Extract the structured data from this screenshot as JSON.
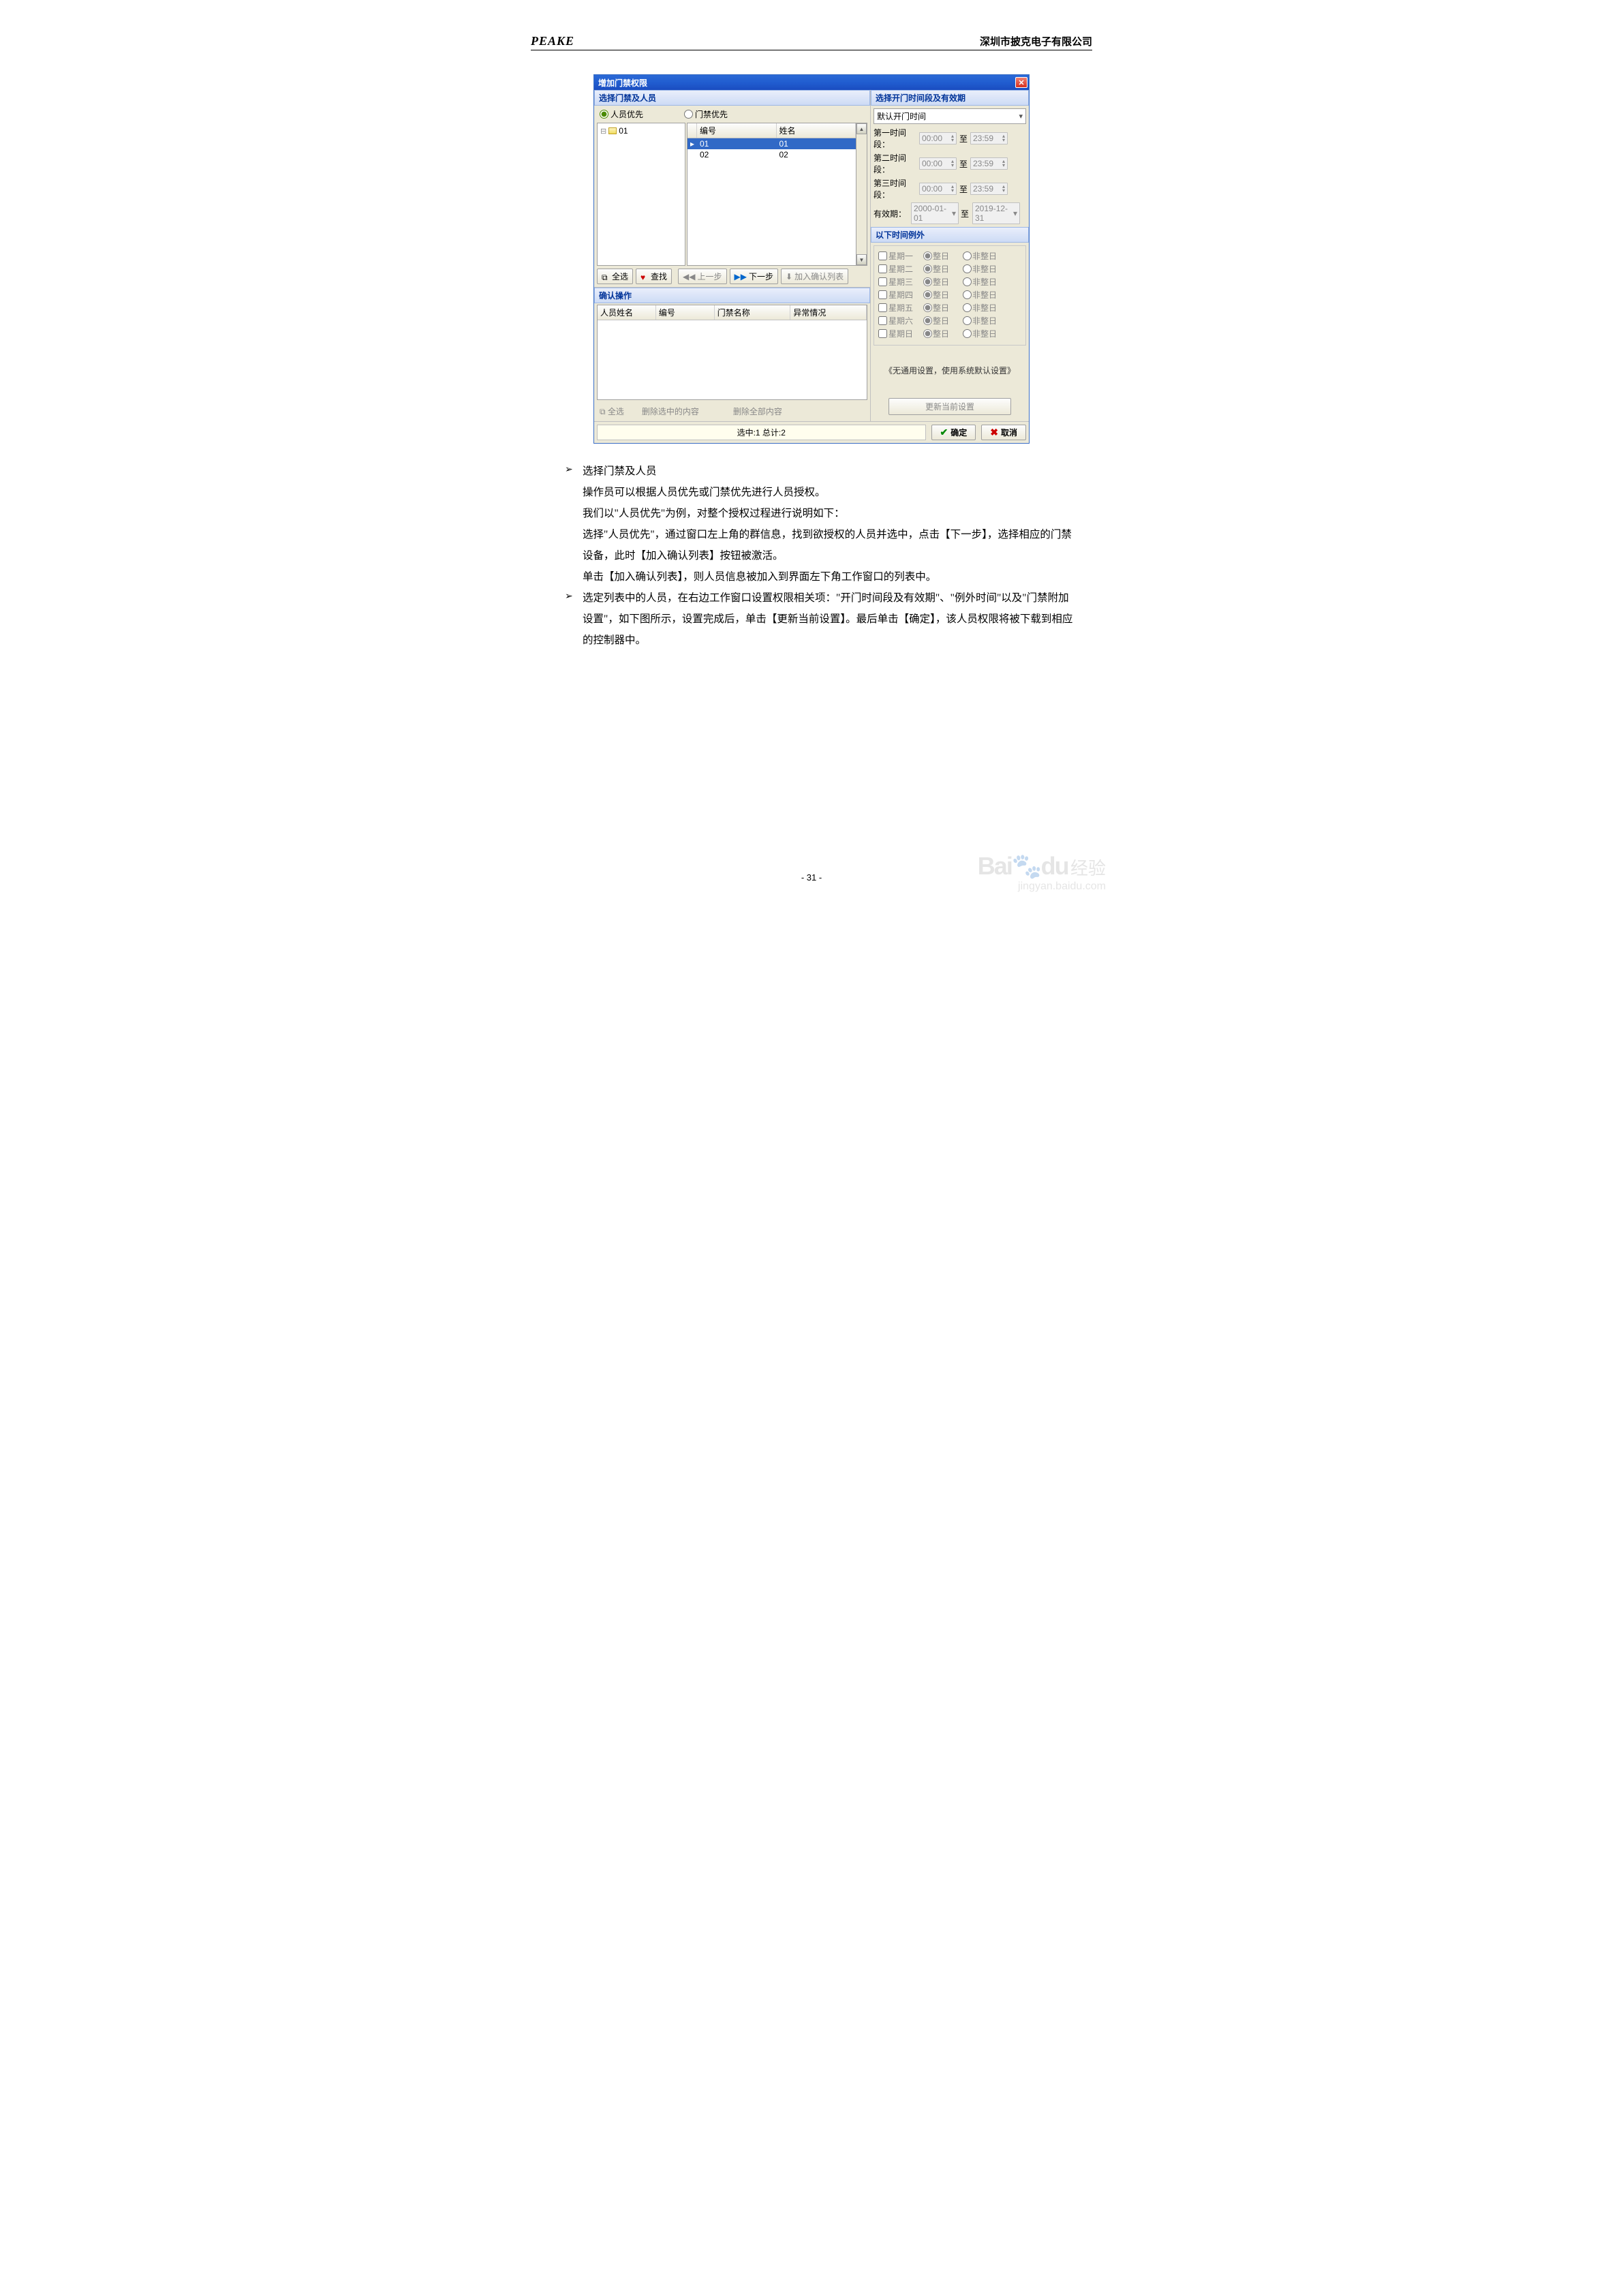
{
  "header": {
    "brand": "PEAKE",
    "company": "深圳市披克电子有限公司"
  },
  "dialog": {
    "title": "增加门禁权限",
    "leftPanelTitle": "选择门禁及人员",
    "radio": {
      "person": "人员优先",
      "door": "门禁优先"
    },
    "tree": {
      "node": "01"
    },
    "list": {
      "headCode": "编号",
      "headName": "姓名",
      "rows": [
        {
          "code": "01",
          "name": "01",
          "sel": true
        },
        {
          "code": "02",
          "name": "02",
          "sel": false
        }
      ]
    },
    "toolbar": {
      "selectAll": "全选",
      "find": "查找",
      "prev": "上一步",
      "next": "下一步",
      "addConfirm": "加入确认列表"
    },
    "confirmTitle": "确认操作",
    "confirmCols": {
      "name": "人员姓名",
      "code": "编号",
      "doorName": "门禁名称",
      "abnormal": "异常情况"
    },
    "confirmBtns": {
      "selectAll": "全选",
      "delSel": "删除选中的内容",
      "delAll": "删除全部内容"
    },
    "rightPanelTitle": "选择开门时间段及有效期",
    "defaultTime": "默认开门时间",
    "timeRows": {
      "r1": "第一时间段：",
      "r2": "第二时间段：",
      "r3": "第三时间段：",
      "start": "00:00",
      "end": "23:59",
      "to": "至"
    },
    "validRow": {
      "label": "有效期：",
      "from": "2000-01-01",
      "to": "至",
      "toDate": "2019-12-31"
    },
    "exceptTitle": "以下时间例外",
    "days": [
      "星期一",
      "星期二",
      "星期三",
      "星期四",
      "星期五",
      "星期六",
      "星期日"
    ],
    "whole": "整日",
    "notWhole": "非整日",
    "noSetting": "《无通用设置，使用系统默认设置》",
    "updateBtn": "更新当前设置",
    "status": "选中:1 总计:2",
    "ok": "确定",
    "cancel": "取消"
  },
  "instr": {
    "b1": "选择门禁及人员",
    "l1": "操作员可以根据人员优先或门禁优先进行人员授权。",
    "l2": "我们以\"人员优先\"为例，对整个授权过程进行说明如下：",
    "l3": "选择\"人员优先\"，通过窗口左上角的群信息，找到欲授权的人员并选中，点击【下一步】，选择相应的门禁设备，此时【加入确认列表】按钮被激活。",
    "l4": "单击【加入确认列表】，则人员信息被加入到界面左下角工作窗口的列表中。",
    "b2": "选定列表中的人员，在右边工作窗口设置权限相关项：\"开门时间段及有效期\"、\"例外时间\"以及\"门禁附加设置\"，如下图所示，设置完成后，单击【更新当前设置】。最后单击【确定】，该人员权限将被下载到相应的控制器中。"
  },
  "pageNum": "- 31 -",
  "watermark": {
    "brand1": "Bai",
    "brand2": "du",
    "cn": "经验",
    "url": "jingyan.baidu.com"
  }
}
